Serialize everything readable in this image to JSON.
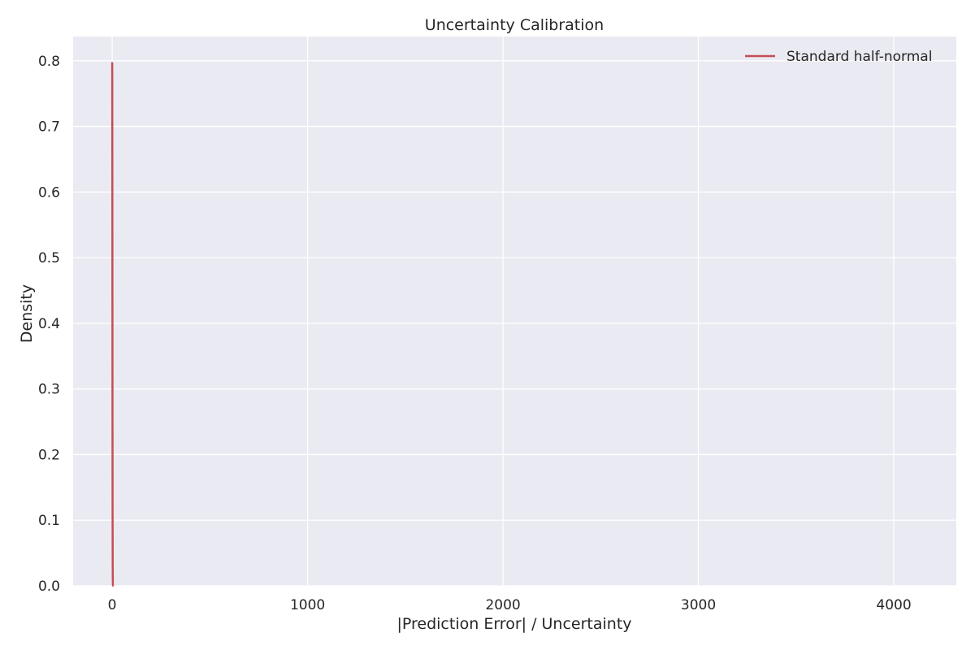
{
  "chart_data": {
    "type": "line",
    "title": "Uncertainty Calibration",
    "xlabel": "|Prediction Error| / Uncertainty",
    "ylabel": "Density",
    "xlim": [
      -200,
      4320
    ],
    "ylim": [
      0,
      0.8369
    ],
    "xticks": [
      0,
      1000,
      2000,
      3000,
      4000
    ],
    "xtick_labels": [
      "0",
      "1000",
      "2000",
      "3000",
      "4000"
    ],
    "yticks": [
      0.0,
      0.1,
      0.2,
      0.3,
      0.4,
      0.5,
      0.6,
      0.7,
      0.8
    ],
    "ytick_labels": [
      "0.0",
      "0.1",
      "0.2",
      "0.3",
      "0.4",
      "0.5",
      "0.6",
      "0.7",
      "0.8"
    ],
    "grid": true,
    "legend_position": "top-right",
    "series": [
      {
        "name": "Standard half-normal",
        "color": "#c44e52",
        "x": [
          0,
          0.25,
          0.5,
          0.75,
          1,
          1.25,
          1.5,
          1.75,
          2,
          2.5,
          3,
          3.5,
          4,
          5,
          6
        ],
        "y": [
          0.7979,
          0.7733,
          0.7041,
          0.6022,
          0.4839,
          0.3653,
          0.259,
          0.1725,
          0.108,
          0.035,
          0.0089,
          0.0017,
          0.0003,
          0.0,
          0.0
        ]
      }
    ]
  },
  "colors": {
    "plot_background": "#eaeaf2",
    "grid": "#ffffff",
    "page_background": "#ffffff"
  }
}
